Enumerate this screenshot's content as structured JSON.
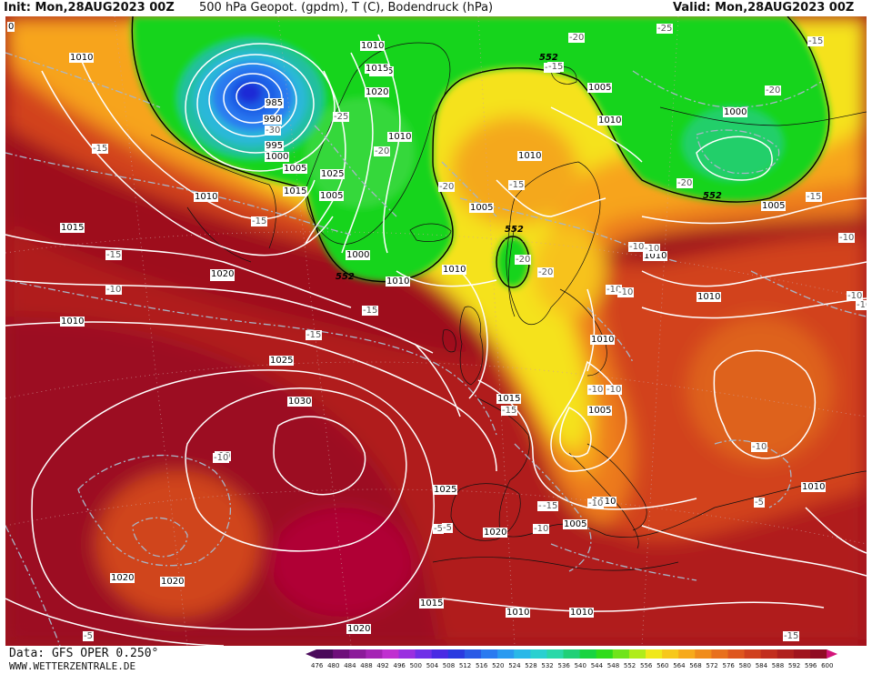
{
  "header": {
    "init": "Init: Mon,28AUG2023 00Z",
    "title": "500 hPa Geopot. (gpdm), T (C), Bodendruck (hPa)",
    "valid": "Valid: Mon,28AUG2023 00Z"
  },
  "footer": {
    "data_source": "Data: GFS OPER 0.250°",
    "website": "WWW.WETTERZENTRALE.DE"
  },
  "colors": {
    "deep_red": "#9e0f1e",
    "red": "#b8241f",
    "dark_orange": "#d8481e",
    "orange": "#ef7a1c",
    "light_orange": "#f7a21b",
    "yellow": "#f7e21b",
    "green": "#18d41a",
    "lime": "#62e11b",
    "teal": "#1ac77b",
    "cyan": "#2ab8d9",
    "blue": "#1e5ee6",
    "dark_blue": "#1a2ad6",
    "magenta_core": "#b00040"
  },
  "map": {
    "isobar_labels": [
      {
        "text": "1010"
      },
      {
        "text": "1015"
      },
      {
        "text": "1020"
      },
      {
        "text": "985"
      },
      {
        "text": "990"
      },
      {
        "text": "995"
      },
      {
        "text": "1000"
      },
      {
        "text": "1005"
      },
      {
        "text": "1015"
      },
      {
        "text": "1010"
      },
      {
        "text": "1025"
      },
      {
        "text": "1005"
      },
      {
        "text": "1000"
      },
      {
        "text": "1010"
      },
      {
        "text": "1010"
      },
      {
        "text": "1015"
      },
      {
        "text": "1010"
      },
      {
        "text": "1015"
      },
      {
        "text": "1020"
      },
      {
        "text": "1010"
      },
      {
        "text": "1005"
      },
      {
        "text": "1010"
      },
      {
        "text": "1005"
      },
      {
        "text": "1010"
      },
      {
        "text": "1000"
      },
      {
        "text": "1005"
      },
      {
        "text": "1005"
      },
      {
        "text": "1010"
      },
      {
        "text": "1010"
      },
      {
        "text": "1010"
      },
      {
        "text": "1010"
      },
      {
        "text": "1005"
      },
      {
        "text": "1015"
      },
      {
        "text": "1025"
      },
      {
        "text": "1030"
      },
      {
        "text": "1020"
      },
      {
        "text": "1025"
      },
      {
        "text": "1020"
      },
      {
        "text": "1020"
      },
      {
        "text": "1020"
      },
      {
        "text": "1015"
      },
      {
        "text": "1010"
      },
      {
        "text": "1010"
      },
      {
        "text": "1020"
      },
      {
        "text": "1010"
      },
      {
        "text": "1010"
      }
    ],
    "temp_labels": [
      {
        "text": "-30"
      },
      {
        "text": "-25"
      },
      {
        "text": "-20"
      },
      {
        "text": "-20"
      },
      {
        "text": "-15"
      },
      {
        "text": "-20"
      },
      {
        "text": "-25"
      },
      {
        "text": "-15"
      },
      {
        "text": "-20"
      },
      {
        "text": "-20"
      },
      {
        "text": "-15"
      },
      {
        "text": "-15"
      },
      {
        "text": "-20"
      },
      {
        "text": "-20"
      },
      {
        "text": "-10"
      },
      {
        "text": "-15"
      },
      {
        "text": "-15"
      },
      {
        "text": "-10"
      },
      {
        "text": "-15"
      },
      {
        "text": "-10"
      },
      {
        "text": "-15"
      },
      {
        "text": "-10"
      },
      {
        "text": "-15"
      },
      {
        "text": "-10"
      },
      {
        "text": "-10"
      },
      {
        "text": "-15"
      },
      {
        "text": "-10"
      },
      {
        "text": "-5"
      },
      {
        "text": "-5"
      },
      {
        "text": "-10"
      },
      {
        "text": "-5"
      },
      {
        "text": "-10"
      },
      {
        "text": "-10"
      },
      {
        "text": "-10"
      },
      {
        "text": "-15"
      },
      {
        "text": "-20"
      },
      {
        "text": "-15"
      },
      {
        "text": "-5"
      },
      {
        "text": "-10"
      },
      {
        "text": "-15"
      },
      {
        "text": "-10"
      },
      {
        "text": "-10"
      },
      {
        "text": "-10"
      }
    ],
    "geopot_labels": [
      {
        "text": "552"
      },
      {
        "text": "552"
      },
      {
        "text": "552"
      },
      {
        "text": "552"
      }
    ],
    "corner_label": "0"
  },
  "legend": {
    "values": [
      "476",
      "480",
      "484",
      "488",
      "492",
      "496",
      "500",
      "504",
      "508",
      "512",
      "516",
      "520",
      "524",
      "528",
      "532",
      "536",
      "540",
      "544",
      "548",
      "552",
      "556",
      "560",
      "564",
      "568",
      "572",
      "576",
      "580",
      "584",
      "588",
      "592",
      "596",
      "600"
    ],
    "colors": [
      "#4a0a5a",
      "#6e0e7a",
      "#8c1a9a",
      "#a524b4",
      "#c030d0",
      "#9a30e0",
      "#7030e8",
      "#4a2ae4",
      "#2a3ae0",
      "#2a5ae6",
      "#2a7af0",
      "#2a9af0",
      "#2ab8e8",
      "#2ad0d0",
      "#2ad8a8",
      "#20d078",
      "#18d440",
      "#30dc1a",
      "#70e41a",
      "#b0ec1a",
      "#f0e81a",
      "#f7c81a",
      "#f7aa1a",
      "#f08c1a",
      "#e8701c",
      "#de561e",
      "#d0401e",
      "#c22e1e",
      "#b0201e",
      "#a0141e",
      "#900c24",
      "#d4147a"
    ]
  }
}
